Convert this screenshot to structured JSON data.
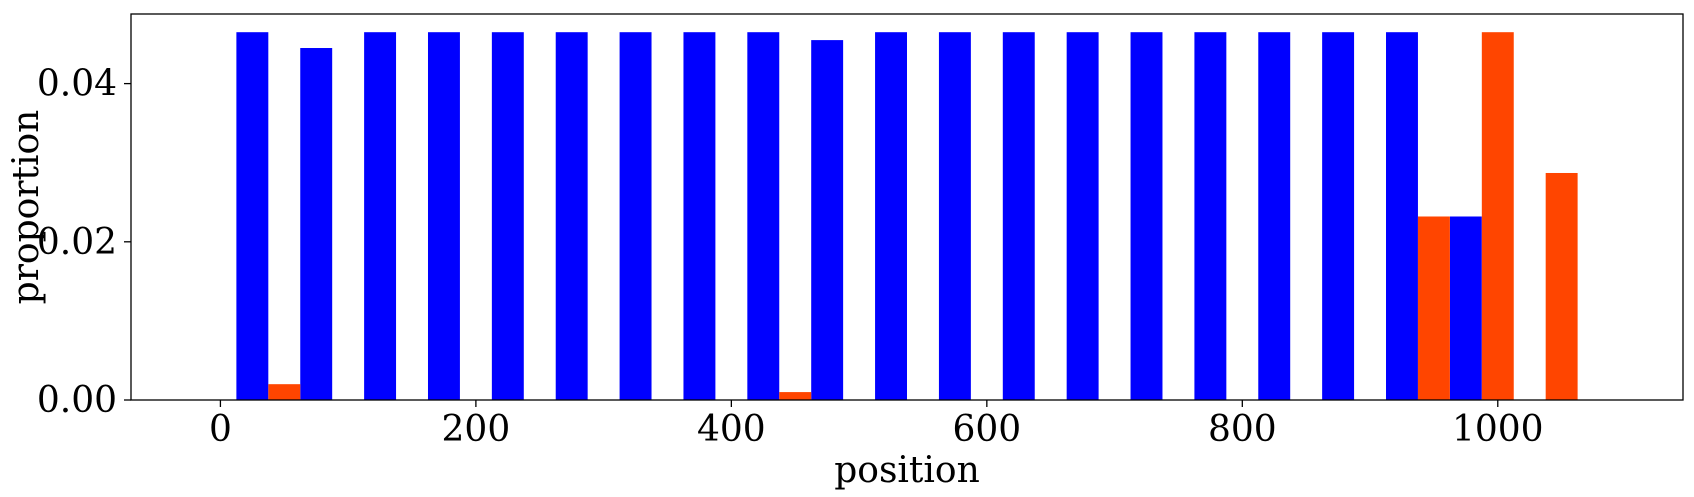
{
  "chart_data": {
    "type": "bar",
    "xlabel": "position",
    "ylabel": "proportion",
    "xlim": [
      -70,
      1145
    ],
    "ylim": [
      0,
      0.0488
    ],
    "xticks": [
      0,
      200,
      400,
      600,
      800,
      1000
    ],
    "xtick_labels": [
      "0",
      "200",
      "400",
      "600",
      "800",
      "1000"
    ],
    "yticks": [
      0.0,
      0.02,
      0.04
    ],
    "ytick_labels": [
      "0.00",
      "0.02",
      "0.04"
    ],
    "bar_width": 25,
    "grid": false,
    "series": [
      {
        "color": "#0000ff",
        "bars": [
          {
            "x": 25,
            "y": 0.0465
          },
          {
            "x": 75,
            "y": 0.0445
          },
          {
            "x": 125,
            "y": 0.0465
          },
          {
            "x": 175,
            "y": 0.0465
          },
          {
            "x": 225,
            "y": 0.0465
          },
          {
            "x": 275,
            "y": 0.0465
          },
          {
            "x": 325,
            "y": 0.0465
          },
          {
            "x": 375,
            "y": 0.0465
          },
          {
            "x": 425,
            "y": 0.0465
          },
          {
            "x": 475,
            "y": 0.0455
          },
          {
            "x": 525,
            "y": 0.0465
          },
          {
            "x": 575,
            "y": 0.0465
          },
          {
            "x": 625,
            "y": 0.0465
          },
          {
            "x": 675,
            "y": 0.0465
          },
          {
            "x": 725,
            "y": 0.0465
          },
          {
            "x": 775,
            "y": 0.0465
          },
          {
            "x": 825,
            "y": 0.0465
          },
          {
            "x": 875,
            "y": 0.0465
          },
          {
            "x": 925,
            "y": 0.0465
          },
          {
            "x": 975,
            "y": 0.0232
          }
        ]
      },
      {
        "color": "#ff4500",
        "bars": [
          {
            "x": 50,
            "y": 0.002
          },
          {
            "x": 450,
            "y": 0.001
          },
          {
            "x": 950,
            "y": 0.0232
          },
          {
            "x": 1000,
            "y": 0.0465
          },
          {
            "x": 1050,
            "y": 0.0287
          }
        ]
      }
    ]
  }
}
